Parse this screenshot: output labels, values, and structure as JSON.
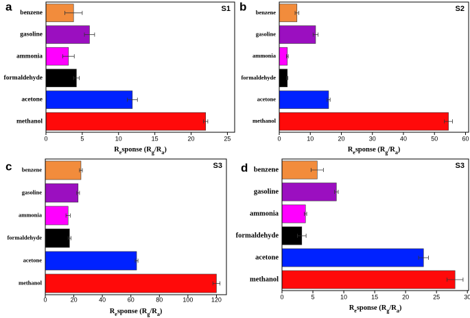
{
  "chart_data": [
    {
      "type": "hbar",
      "panel": "a",
      "label": "S1",
      "xlabel": "Response (Rg/Ra)",
      "categories": [
        "benzene",
        "gasoline",
        "ammonia",
        "formaldehyde",
        "acetone",
        "methanol"
      ],
      "values": [
        3.8,
        6.0,
        3.1,
        4.2,
        11.9,
        22.0
      ],
      "errors": [
        1.2,
        0.7,
        0.8,
        0.4,
        0.7,
        0.3
      ],
      "colors": [
        "#f28c3c",
        "#9b0fc0",
        "#ff00ff",
        "#000000",
        "#0022ff",
        "#ff0a0a"
      ],
      "xlim": [
        0,
        26
      ],
      "xticks": [
        0,
        5,
        10,
        15,
        20,
        25
      ]
    },
    {
      "type": "hbar",
      "panel": "b",
      "label": "S2",
      "xlabel": "Response (Rg/Ra)",
      "categories": [
        "benzene",
        "gasoline",
        "ammonia",
        "formaldehyde",
        "acetone",
        "methanol"
      ],
      "values": [
        5.7,
        11.7,
        2.6,
        2.6,
        15.9,
        54.5
      ],
      "errors": [
        0.6,
        0.8,
        0.3,
        0.2,
        0.5,
        1.3
      ],
      "colors": [
        "#f28c3c",
        "#9b0fc0",
        "#ff00ff",
        "#000000",
        "#0022ff",
        "#ff0a0a"
      ],
      "xlim": [
        0,
        61
      ],
      "xticks": [
        0,
        10,
        20,
        30,
        40,
        50,
        60
      ]
    },
    {
      "type": "hbar",
      "panel": "c",
      "label": "S3",
      "xlabel": "Response (Rg/Ra)",
      "categories": [
        "benzene",
        "gasoline",
        "ammonia",
        "formaldehyde",
        "acetone",
        "methanol"
      ],
      "values": [
        25,
        23,
        16,
        17,
        64,
        120
      ],
      "errors": [
        1,
        1,
        1.5,
        1,
        1,
        2.5
      ],
      "colors": [
        "#f28c3c",
        "#9b0fc0",
        "#ff00ff",
        "#000000",
        "#0022ff",
        "#ff0a0a"
      ],
      "xlim": [
        0,
        127
      ],
      "xticks": [
        0,
        20,
        40,
        60,
        80,
        100,
        120
      ]
    },
    {
      "type": "hbar",
      "panel": "d",
      "label": "S3",
      "xlabel": "Response (Rg/Ra)",
      "categories": [
        "benzene",
        "gasoline",
        "ammonia",
        "formaldehyde",
        "acetone",
        "methanol"
      ],
      "values": [
        5.7,
        8.8,
        3.8,
        3.2,
        22.9,
        28.0
      ],
      "errors": [
        1.0,
        0.3,
        0.2,
        0.7,
        0.8,
        1.3
      ],
      "colors": [
        "#f28c3c",
        "#9b0fc0",
        "#ff00ff",
        "#000000",
        "#0022ff",
        "#ff0a0a"
      ],
      "xlim": [
        0,
        30.2
      ],
      "xticks": [
        0,
        5,
        10,
        15,
        20,
        25,
        30
      ]
    }
  ]
}
